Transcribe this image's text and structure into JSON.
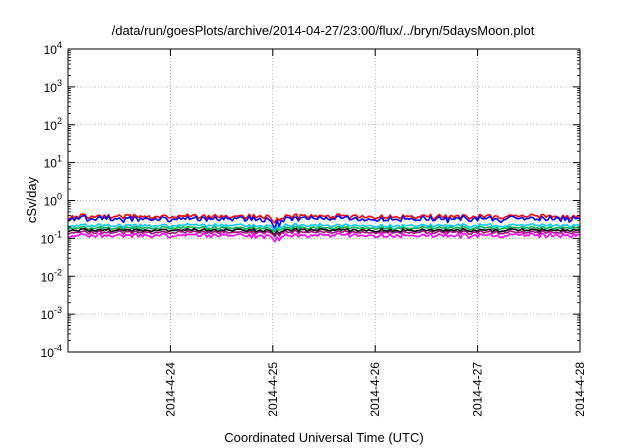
{
  "chart_data": {
    "type": "line",
    "title": "/data/run/goesPlots/archive/2014-04-27/23:00/flux/../bryn/5daysMoon.plot",
    "xlabel": "Coordinated Universal Time (UTC)",
    "ylabel": "cSv/day",
    "x_range": [
      "2014-04-23 00:00",
      "2014-04-28 00:00"
    ],
    "x_ticks": [
      "2014-4-24",
      "2014-4-25",
      "2014-4-26",
      "2014-4-27",
      "2014-4-28"
    ],
    "y_scale": "log",
    "ylim": [
      0.0001,
      10000
    ],
    "y_ticks": [
      {
        "base": "10",
        "exp": "4"
      },
      {
        "base": "10",
        "exp": "3"
      },
      {
        "base": "10",
        "exp": "2"
      },
      {
        "base": "10",
        "exp": "1"
      },
      {
        "base": "10",
        "exp": "0"
      },
      {
        "base": "10",
        "exp": "-1"
      },
      {
        "base": "10",
        "exp": "-2"
      },
      {
        "base": "10",
        "exp": "-3"
      },
      {
        "base": "10",
        "exp": "-4"
      }
    ],
    "grid": true,
    "series": [
      {
        "color": "#ff0000",
        "level": 0.38,
        "spread": 0.13
      },
      {
        "color": "#0000ff",
        "level": 0.33,
        "spread": 0.16
      },
      {
        "color": "#00c8ff",
        "level": 0.22,
        "spread": 0.09
      },
      {
        "color": "#00b050",
        "level": 0.19,
        "spread": 0.08
      },
      {
        "color": "#000000",
        "level": 0.165,
        "spread": 0.08
      },
      {
        "color": "#a01080",
        "level": 0.145,
        "spread": 0.09
      },
      {
        "color": "#ff00ff",
        "level": 0.12,
        "spread": 0.12
      }
    ]
  }
}
